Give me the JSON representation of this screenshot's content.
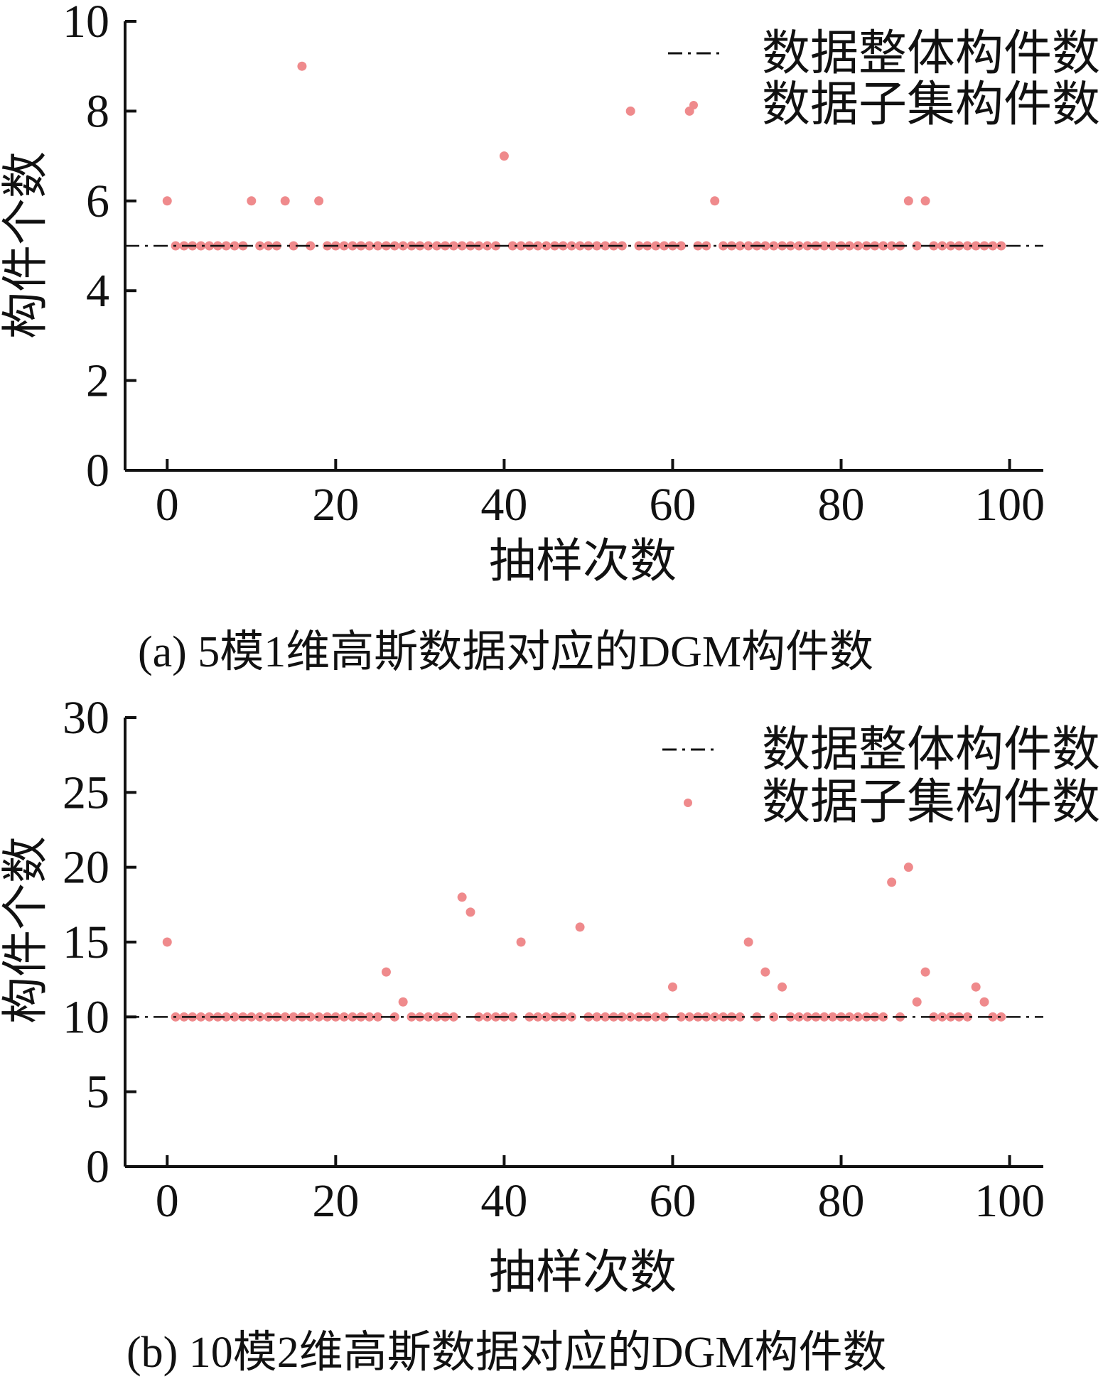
{
  "charts": [
    {
      "type": "scatter",
      "caption": "(a) 5模1维高斯数据对应的DGM构件数",
      "xlabel": "抽样次数",
      "ylabel": "构件个数",
      "xlim": [
        -5,
        104
      ],
      "ylim": [
        0,
        10
      ],
      "xticks": [
        0,
        20,
        40,
        60,
        80,
        100
      ],
      "yticks": [
        0,
        2,
        4,
        6,
        8,
        10
      ],
      "legend_position": "top-right",
      "legend": {
        "line": "数据整体构件数",
        "points": "数据子集构件数"
      },
      "colors": {
        "points": "#ef8a8c",
        "line": "#111111",
        "axis": "#111111"
      },
      "chart_data": {
        "type": "scatter",
        "series": [
          {
            "name": "数据整体构件数",
            "kind": "line",
            "value": 5
          },
          {
            "name": "数据子集构件数",
            "kind": "points",
            "x": [
              0,
              1,
              2,
              3,
              4,
              5,
              6,
              7,
              8,
              9,
              10,
              11,
              12,
              13,
              14,
              15,
              16,
              17,
              18,
              19,
              20,
              21,
              22,
              23,
              24,
              25,
              26,
              27,
              28,
              29,
              30,
              31,
              32,
              33,
              34,
              35,
              36,
              37,
              38,
              39,
              40,
              41,
              42,
              43,
              44,
              45,
              46,
              47,
              48,
              49,
              50,
              51,
              52,
              53,
              54,
              55,
              56,
              57,
              58,
              59,
              60,
              61,
              62,
              63,
              64,
              65,
              66,
              67,
              68,
              69,
              70,
              71,
              72,
              73,
              74,
              75,
              76,
              77,
              78,
              79,
              80,
              81,
              82,
              83,
              84,
              85,
              86,
              87,
              88,
              89,
              90,
              91,
              92,
              93,
              94,
              95,
              96,
              97,
              98,
              99
            ],
            "y": [
              6,
              5,
              5,
              5,
              5,
              5,
              5,
              5,
              5,
              5,
              6,
              5,
              5,
              5,
              6,
              5,
              9,
              5,
              6,
              5,
              5,
              5,
              5,
              5,
              5,
              5,
              5,
              5,
              5,
              5,
              5,
              5,
              5,
              5,
              5,
              5,
              5,
              5,
              5,
              5,
              7,
              5,
              5,
              5,
              5,
              5,
              5,
              5,
              5,
              5,
              5,
              5,
              5,
              5,
              5,
              8,
              5,
              5,
              5,
              5,
              5,
              5,
              8,
              5,
              5,
              6,
              5,
              5,
              5,
              5,
              5,
              5,
              5,
              5,
              5,
              5,
              5,
              5,
              5,
              5,
              5,
              5,
              5,
              5,
              5,
              5,
              5,
              5,
              6,
              5,
              6,
              5,
              5,
              5,
              5,
              5,
              5,
              5,
              5,
              5
            ]
          }
        ]
      }
    },
    {
      "type": "scatter",
      "caption": "(b) 10模2维高斯数据对应的DGM构件数",
      "xlabel": "抽样次数",
      "ylabel": "构件个数",
      "xlim": [
        -5,
        104
      ],
      "ylim": [
        0,
        30
      ],
      "xticks": [
        0,
        20,
        40,
        60,
        80,
        100
      ],
      "yticks": [
        0,
        5,
        10,
        15,
        20,
        25,
        30
      ],
      "legend_position": "top-right",
      "legend": {
        "line": "数据整体构件数",
        "points": "数据子集构件数"
      },
      "colors": {
        "points": "#ef8a8c",
        "line": "#111111",
        "axis": "#111111"
      },
      "chart_data": {
        "type": "scatter",
        "series": [
          {
            "name": "数据整体构件数",
            "kind": "line",
            "value": 10
          },
          {
            "name": "数据子集构件数",
            "kind": "points",
            "x": [
              0,
              1,
              2,
              3,
              4,
              5,
              6,
              7,
              8,
              9,
              10,
              11,
              12,
              13,
              14,
              15,
              16,
              17,
              18,
              19,
              20,
              21,
              22,
              23,
              24,
              25,
              26,
              27,
              28,
              29,
              30,
              31,
              32,
              33,
              34,
              35,
              36,
              37,
              38,
              39,
              40,
              41,
              42,
              43,
              44,
              45,
              46,
              47,
              48,
              49,
              50,
              51,
              52,
              53,
              54,
              55,
              56,
              57,
              58,
              59,
              60,
              61,
              62,
              63,
              64,
              65,
              66,
              67,
              68,
              69,
              70,
              71,
              72,
              73,
              74,
              75,
              76,
              77,
              78,
              79,
              80,
              81,
              82,
              83,
              84,
              85,
              86,
              87,
              88,
              89,
              90,
              91,
              92,
              93,
              94,
              95,
              96,
              97,
              98,
              99
            ],
            "y": [
              15,
              10,
              10,
              10,
              10,
              10,
              10,
              10,
              10,
              10,
              10,
              10,
              10,
              10,
              10,
              10,
              10,
              10,
              10,
              10,
              10,
              10,
              10,
              10,
              10,
              10,
              13,
              10,
              11,
              10,
              10,
              10,
              10,
              10,
              10,
              18,
              17,
              10,
              10,
              10,
              10,
              10,
              15,
              10,
              10,
              10,
              10,
              10,
              10,
              16,
              10,
              10,
              10,
              10,
              10,
              10,
              10,
              10,
              10,
              10,
              12,
              10,
              10,
              10,
              10,
              10,
              10,
              10,
              10,
              15,
              10,
              13,
              10,
              12,
              10,
              10,
              10,
              10,
              10,
              10,
              10,
              10,
              10,
              10,
              10,
              10,
              19,
              10,
              20,
              11,
              13,
              10,
              10,
              10,
              10,
              10,
              12,
              11,
              10,
              10
            ]
          }
        ]
      }
    }
  ]
}
